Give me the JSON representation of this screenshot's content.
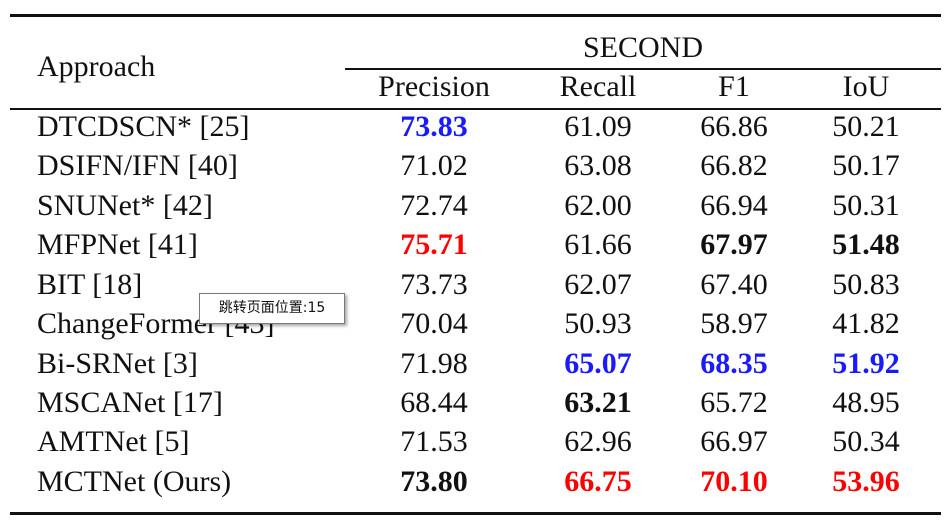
{
  "table": {
    "approach_header": "Approach",
    "group_header": "SECOND",
    "columns": [
      "Precision",
      "Recall",
      "F1",
      "IoU"
    ],
    "rows": [
      {
        "name": "DTCDSCN* [25]",
        "values": [
          "73.83",
          "61.09",
          "66.86",
          "50.21"
        ],
        "styles": [
          "blue",
          "",
          "",
          ""
        ]
      },
      {
        "name": "DSIFN/IFN [40]",
        "values": [
          "71.02",
          "63.08",
          "66.82",
          "50.17"
        ],
        "styles": [
          "",
          "",
          "",
          ""
        ]
      },
      {
        "name": "SNUNet* [42]",
        "values": [
          "72.74",
          "62.00",
          "66.94",
          "50.31"
        ],
        "styles": [
          "",
          "",
          "",
          ""
        ]
      },
      {
        "name": "MFPNet [41]",
        "values": [
          "75.71",
          "61.66",
          "67.97",
          "51.48"
        ],
        "styles": [
          "red",
          "",
          "bold",
          "bold"
        ]
      },
      {
        "name": "BIT [18]",
        "values": [
          "73.73",
          "62.07",
          "67.40",
          "50.83"
        ],
        "styles": [
          "",
          "",
          "",
          ""
        ]
      },
      {
        "name": "ChangeFormer [43]",
        "values": [
          "70.04",
          "50.93",
          "58.97",
          "41.82"
        ],
        "styles": [
          "",
          "",
          "",
          ""
        ]
      },
      {
        "name": "Bi-SRNet [3]",
        "values": [
          "71.98",
          "65.07",
          "68.35",
          "51.92"
        ],
        "styles": [
          "",
          "blue",
          "blue",
          "blue"
        ]
      },
      {
        "name": "MSCANet [17]",
        "values": [
          "68.44",
          "63.21",
          "65.72",
          "48.95"
        ],
        "styles": [
          "",
          "bold",
          "",
          ""
        ]
      },
      {
        "name": "AMTNet [5]",
        "values": [
          "71.53",
          "62.96",
          "66.97",
          "50.34"
        ],
        "styles": [
          "",
          "",
          "",
          ""
        ]
      },
      {
        "name": "MCTNet (Ours)",
        "values": [
          "73.80",
          "66.75",
          "70.10",
          "53.96"
        ],
        "styles": [
          "bold",
          "red",
          "red",
          "red"
        ]
      }
    ]
  },
  "tooltip": {
    "text": "跳转页面位置:15"
  },
  "colors": {
    "red": "#ff0000",
    "blue": "#1a1aff",
    "text": "#111111"
  }
}
